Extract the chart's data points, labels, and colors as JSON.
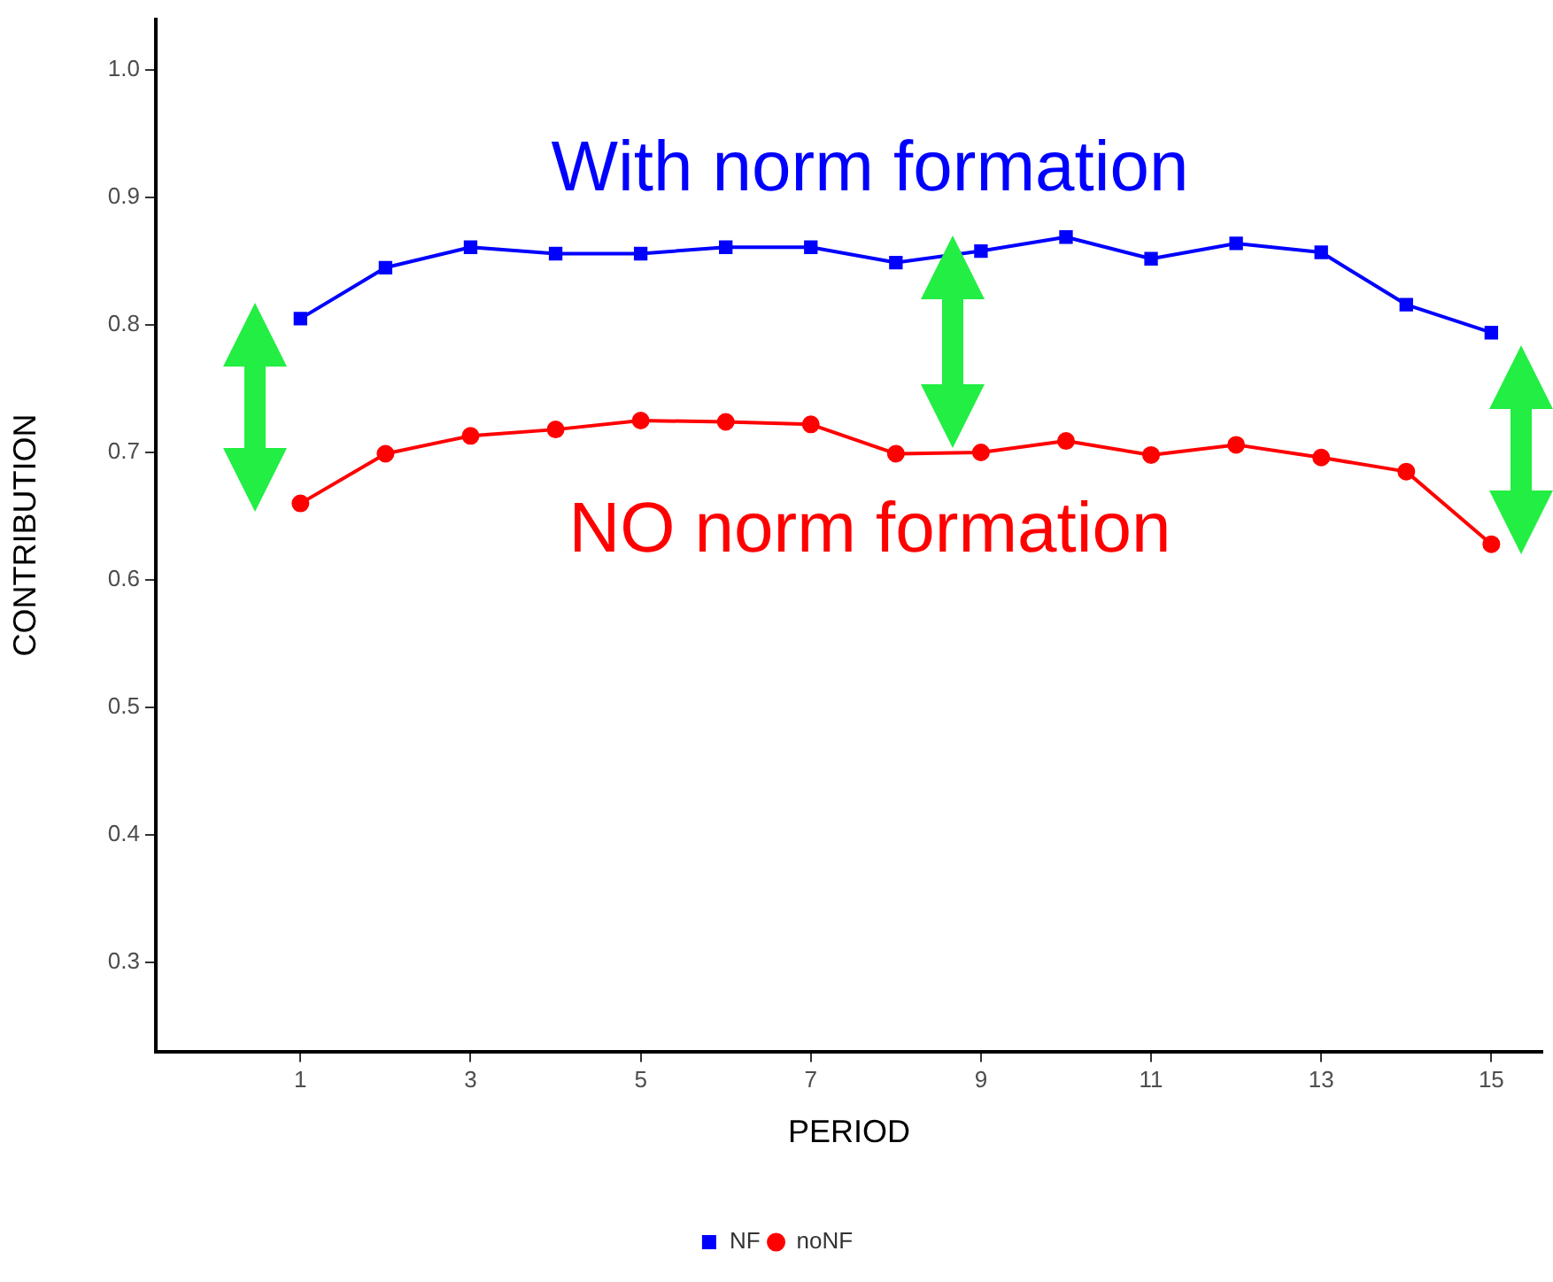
{
  "chart_data": {
    "type": "line",
    "xlabel": "PERIOD",
    "ylabel": "CONTRIBUTION",
    "x": [
      1,
      2,
      3,
      4,
      5,
      6,
      7,
      8,
      9,
      10,
      11,
      12,
      13,
      14,
      15
    ],
    "xlim": [
      -0.7,
      15.6
    ],
    "xticks": [
      1,
      3,
      5,
      7,
      9,
      11,
      13,
      15
    ],
    "ylim": [
      0.23,
      1.04
    ],
    "yticks": [
      0.3,
      0.4,
      0.5,
      0.6,
      0.7,
      0.8,
      0.9,
      {
        "value": 1.0,
        "label": "1.0"
      }
    ],
    "grid": false,
    "legend": "bottom",
    "line_style": "solid",
    "series": [
      {
        "name": "NF",
        "color": "#0000ff",
        "marker": "square",
        "values": [
          0.805,
          0.845,
          0.861,
          0.856,
          0.856,
          0.861,
          0.861,
          0.849,
          0.858,
          0.869,
          0.852,
          0.864,
          0.857,
          0.816,
          0.794
        ]
      },
      {
        "name": "noNF",
        "color": "#ff0000",
        "marker": "circle",
        "values": [
          0.66,
          0.699,
          0.713,
          0.718,
          0.725,
          0.724,
          0.722,
          0.699,
          0.7,
          0.709,
          0.698,
          0.706,
          0.696,
          0.685,
          0.628
        ]
      }
    ],
    "annotations": [
      "With norm formation",
      "NO norm formation"
    ]
  }
}
